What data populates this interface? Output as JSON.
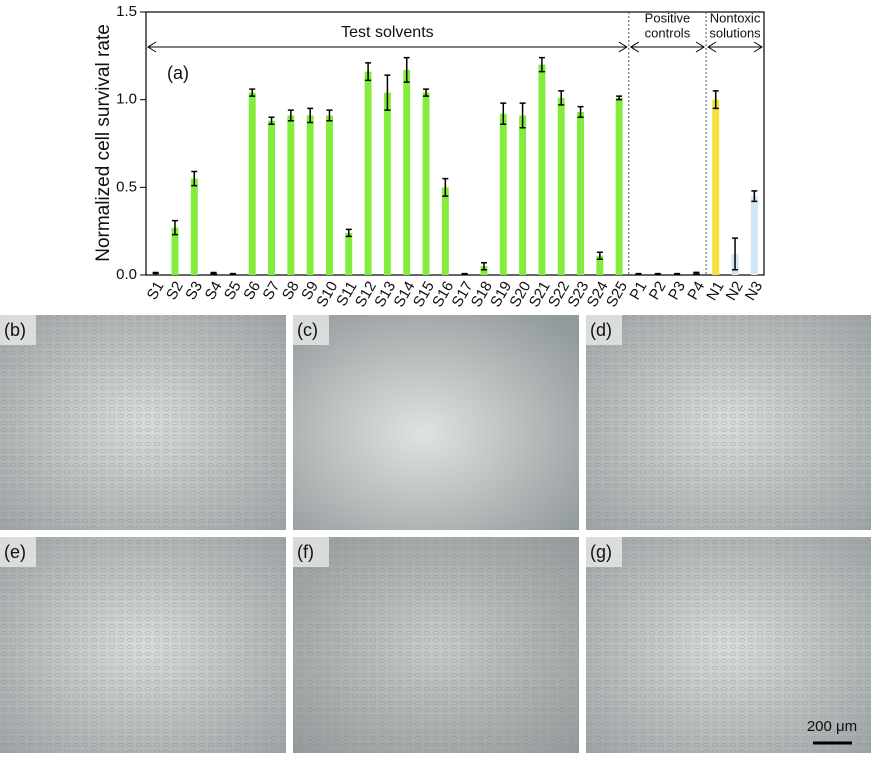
{
  "chart_data": {
    "type": "bar",
    "panel_label": "(a)",
    "y_label": "Normalized cell survival rate",
    "categories": [
      "S1",
      "S2",
      "S3",
      "S4",
      "S5",
      "S6",
      "S7",
      "S8",
      "S9",
      "S10",
      "S11",
      "S12",
      "S13",
      "S14",
      "S15",
      "S16",
      "S17",
      "S18",
      "S19",
      "S20",
      "S21",
      "S22",
      "S23",
      "S24",
      "S25",
      "P1",
      "P2",
      "P3",
      "P4",
      "N1",
      "N2",
      "N3"
    ],
    "values": [
      0.01,
      0.27,
      0.55,
      0.01,
      0.005,
      1.04,
      0.88,
      0.91,
      0.91,
      0.91,
      0.24,
      1.16,
      1.04,
      1.17,
      1.04,
      0.5,
      0.005,
      0.05,
      0.92,
      0.91,
      1.2,
      1.01,
      0.93,
      0.11,
      1.01,
      0.005,
      0.005,
      0.005,
      0.01,
      1.0,
      0.12,
      0.45
    ],
    "errors": [
      0.004,
      0.04,
      0.04,
      0.004,
      0.003,
      0.02,
      0.02,
      0.03,
      0.04,
      0.03,
      0.02,
      0.05,
      0.1,
      0.07,
      0.02,
      0.05,
      0.003,
      0.02,
      0.06,
      0.07,
      0.04,
      0.04,
      0.03,
      0.02,
      0.01,
      0.003,
      0.003,
      0.003,
      0.005,
      0.05,
      0.09,
      0.03
    ],
    "colors": [
      "#84ec3c",
      "#84ec3c",
      "#84ec3c",
      "#222222",
      "#222222",
      "#84ec3c",
      "#84ec3c",
      "#84ec3c",
      "#84ec3c",
      "#84ec3c",
      "#84ec3c",
      "#84ec3c",
      "#84ec3c",
      "#84ec3c",
      "#84ec3c",
      "#84ec3c",
      "#222222",
      "#84ec3c",
      "#84ec3c",
      "#84ec3c",
      "#84ec3c",
      "#84ec3c",
      "#84ec3c",
      "#84ec3c",
      "#84ec3c",
      "#222222",
      "#222222",
      "#222222",
      "#222222",
      "#f5e23c",
      "#d3e6f4",
      "#d3e6f4"
    ],
    "groups": [
      {
        "label": [
          "Test solvents"
        ]
      },
      {
        "label": [
          "Positive",
          "controls"
        ]
      },
      {
        "label": [
          "Nontoxic",
          "solutions"
        ]
      }
    ],
    "ylim": [
      0,
      1.5
    ],
    "yticks": [
      {
        "value": 0,
        "label": "0.0"
      },
      0.5,
      {
        "value": 1,
        "label": "1.0"
      },
      1.5
    ]
  },
  "images": {
    "labels": [
      "(b)",
      "(c)",
      "(d)",
      "(e)",
      "(f)",
      "(g)"
    ],
    "scale_bar": "200 μm"
  }
}
